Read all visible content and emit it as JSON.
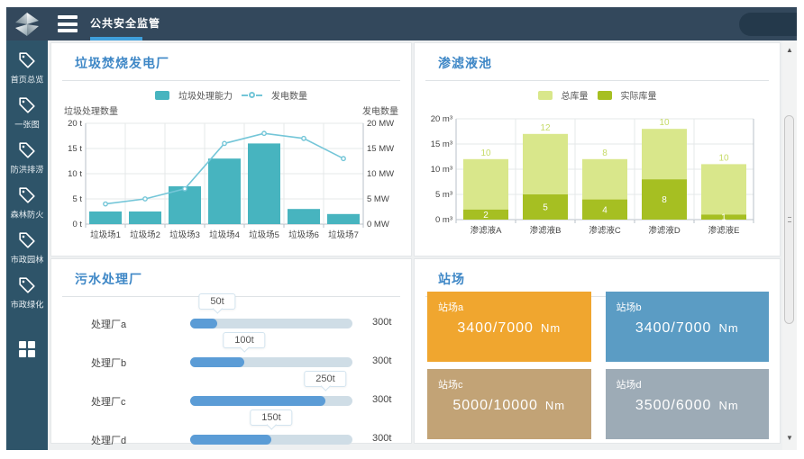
{
  "app": {
    "title": "公共安全监管"
  },
  "sidebar": {
    "items": [
      {
        "label": "首页总览"
      },
      {
        "label": "一张图"
      },
      {
        "label": "防洪排涝"
      },
      {
        "label": "森林防火"
      },
      {
        "label": "市政园林"
      },
      {
        "label": "市政绿化"
      }
    ]
  },
  "panels": {
    "plant": {
      "title": "垃圾焚烧发电厂"
    },
    "leachate": {
      "title": "渗滤液池"
    },
    "sewage": {
      "title": "污水处理厂",
      "rows": [
        {
          "label": "处理厂a",
          "value": 50,
          "max": 300,
          "value_label": "50t",
          "max_label": "300t"
        },
        {
          "label": "处理厂b",
          "value": 100,
          "max": 300,
          "value_label": "100t",
          "max_label": "300t"
        },
        {
          "label": "处理厂c",
          "value": 250,
          "max": 300,
          "value_label": "250t",
          "max_label": "300t"
        },
        {
          "label": "处理厂d",
          "value": 150,
          "max": 300,
          "value_label": "150t",
          "max_label": "300t"
        }
      ]
    },
    "stations": {
      "title": "站场",
      "cards": [
        {
          "label": "站场a",
          "value": "3400/7000",
          "unit": "Nm",
          "color": "#f0a62f"
        },
        {
          "label": "站场b",
          "value": "3400/7000",
          "unit": "Nm",
          "color": "#5b9cc4"
        },
        {
          "label": "站场c",
          "value": "5000/10000",
          "unit": "Nm",
          "color": "#c2a376"
        },
        {
          "label": "站场d",
          "value": "3500/6000",
          "unit": "Nm",
          "color": "#9dabb6"
        }
      ]
    }
  },
  "chart_data": [
    {
      "type": "bar",
      "title": "垃圾焚烧发电厂",
      "categories": [
        "垃圾场1",
        "垃圾场2",
        "垃圾场3",
        "垃圾场4",
        "垃圾场5",
        "垃圾场6",
        "垃圾场7"
      ],
      "series": [
        {
          "name": "垃圾处理能力",
          "kind": "bar",
          "values": [
            2.5,
            2.5,
            7.5,
            13,
            16,
            3,
            2
          ],
          "unit": "t",
          "color": "#47b4bf"
        },
        {
          "name": "发电数量",
          "kind": "line",
          "values": [
            4,
            5,
            7,
            16,
            18,
            17,
            13
          ],
          "unit": "MW",
          "color": "#74c6d8"
        }
      ],
      "ylabel_left": "垃圾处理数量",
      "ylabel_right": "发电数量",
      "ylim": [
        0,
        20
      ],
      "yticks_left": [
        "0 t",
        "5 t",
        "10 t",
        "15 t",
        "20 t"
      ],
      "yticks_right": [
        "0 MW",
        "5 MW",
        "10 MW",
        "15 MW",
        "20 MW"
      ],
      "grid": true,
      "legend_position": "top"
    },
    {
      "type": "bar",
      "subtype": "stacked",
      "title": "渗滤液池",
      "categories": [
        "渗滤液A",
        "渗滤液B",
        "渗滤液C",
        "渗滤液D",
        "渗滤液E"
      ],
      "series": [
        {
          "name": "实际库量",
          "values": [
            2,
            5,
            4,
            8,
            1
          ],
          "color": "#a6bf22",
          "label_color": "#ffffff"
        },
        {
          "name": "总库量",
          "values": [
            10,
            12,
            8,
            10,
            10
          ],
          "color": "#d9e78b",
          "label_color": "#c6db68"
        }
      ],
      "ylim": [
        0,
        20
      ],
      "yticks": [
        "0 m³",
        "5 m³",
        "10 m³",
        "15 m³",
        "20 m³"
      ],
      "grid": true,
      "legend_position": "top"
    }
  ],
  "scrollbar": {
    "up_glyph": "▲",
    "down_glyph": "▼"
  }
}
